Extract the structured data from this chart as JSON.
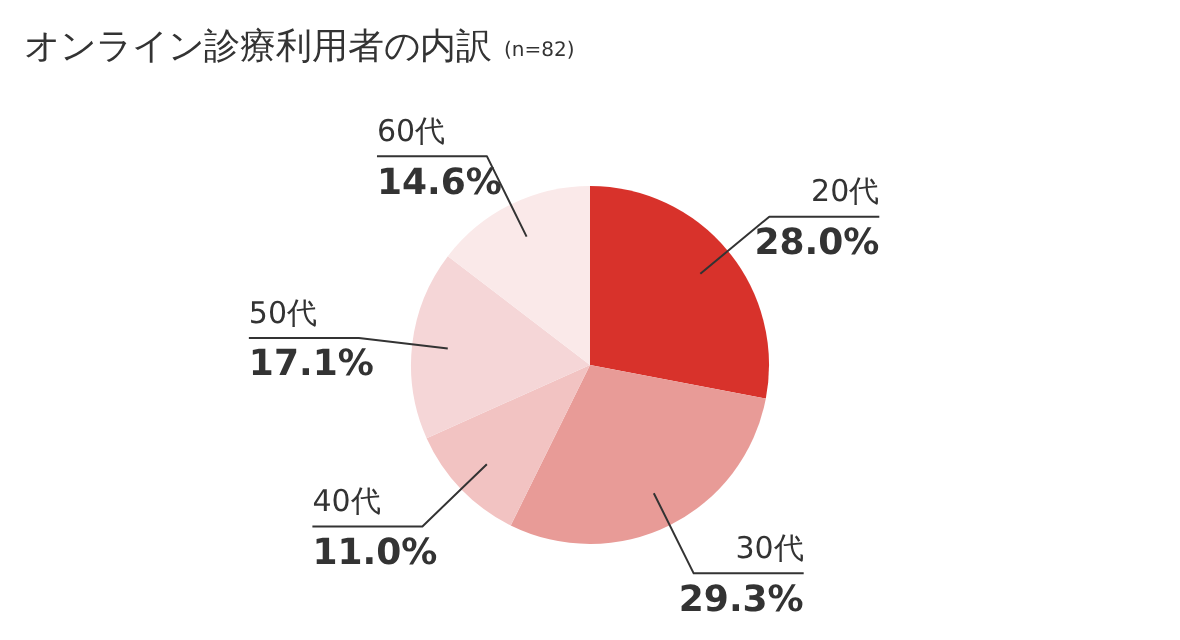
{
  "chart_data": {
    "type": "pie",
    "title": "オンライン診療利用者の内訳",
    "subtitle": "(n=82)",
    "categories": [
      "20代",
      "30代",
      "40代",
      "50代",
      "60代"
    ],
    "values": [
      28.0,
      29.3,
      11.0,
      17.1,
      14.6
    ],
    "value_labels": [
      "28.0%",
      "29.3%",
      "11.0%",
      "17.1%",
      "14.6%"
    ],
    "colors": [
      "#d8322b",
      "#e89b97",
      "#f2c3c2",
      "#f5d6d7",
      "#fae9e9"
    ],
    "legend": false
  }
}
